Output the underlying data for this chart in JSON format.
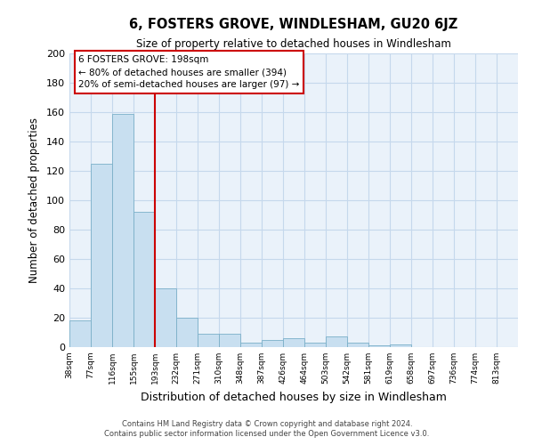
{
  "title": "6, FOSTERS GROVE, WINDLESHAM, GU20 6JZ",
  "subtitle": "Size of property relative to detached houses in Windlesham",
  "xlabel": "Distribution of detached houses by size in Windlesham",
  "ylabel": "Number of detached properties",
  "bar_color": "#c8dff0",
  "bar_edge_color": "#7aafc8",
  "bar_values": [
    18,
    125,
    159,
    92,
    40,
    20,
    9,
    9,
    3,
    5,
    6,
    3,
    7,
    3,
    1,
    2,
    0,
    0,
    0,
    0,
    0
  ],
  "bar_labels": [
    "38sqm",
    "77sqm",
    "116sqm",
    "155sqm",
    "193sqm",
    "232sqm",
    "271sqm",
    "310sqm",
    "348sqm",
    "387sqm",
    "426sqm",
    "464sqm",
    "503sqm",
    "542sqm",
    "581sqm",
    "619sqm",
    "658sqm",
    "697sqm",
    "736sqm",
    "774sqm",
    "813sqm"
  ],
  "ylim": [
    0,
    200
  ],
  "yticks": [
    0,
    20,
    40,
    60,
    80,
    100,
    120,
    140,
    160,
    180,
    200
  ],
  "vline_x": 4,
  "vline_color": "#cc0000",
  "annotation_title": "6 FOSTERS GROVE: 198sqm",
  "annotation_line1": "← 80% of detached houses are smaller (394)",
  "annotation_line2": "20% of semi-detached houses are larger (97) →",
  "annotation_box_color": "#ffffff",
  "annotation_box_edge": "#cc0000",
  "background_color": "#ffffff",
  "plot_bg_color": "#eaf2fa",
  "grid_color": "#c5d8ec",
  "footer1": "Contains HM Land Registry data © Crown copyright and database right 2024.",
  "footer2": "Contains public sector information licensed under the Open Government Licence v3.0."
}
